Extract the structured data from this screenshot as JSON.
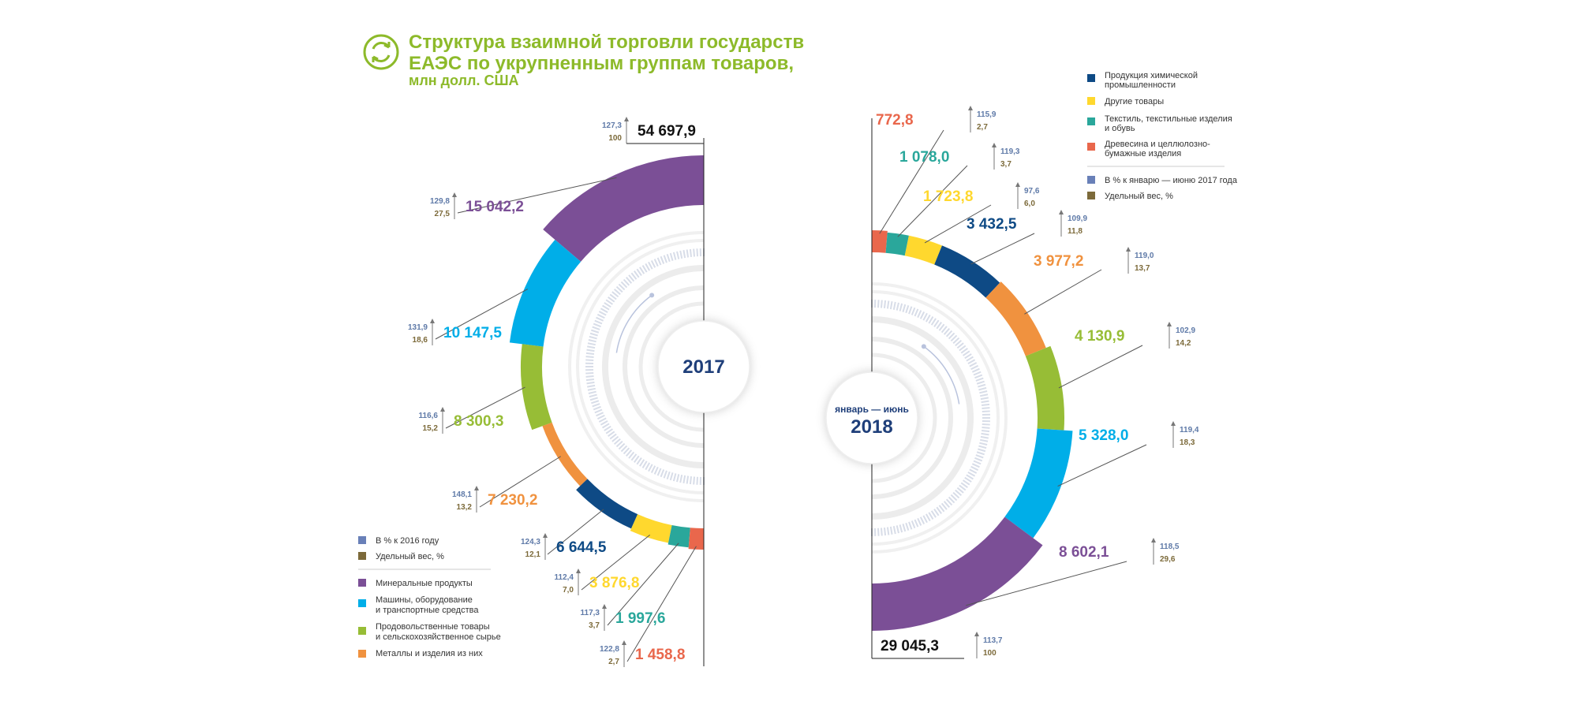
{
  "header": {
    "title_line1": "Структура взаимной торговли государств",
    "title_line2": "ЕАЭС по укрупненным группам товаров,",
    "subtitle": "млн долл. США"
  },
  "colors": {
    "minerals": "#7b4f96",
    "machinery": "#00aee8",
    "food": "#97bd36",
    "metals": "#f0923f",
    "chemical": "#0e4a85",
    "other": "#ffd82e",
    "textile": "#2aa79b",
    "wood": "#e9674c",
    "pct_marker": "#6980b8",
    "share_marker": "#7c6a3a",
    "title": "#8dba2a"
  },
  "legend_left": {
    "pct_label": "В % к 2016 году",
    "share_label": "Удельный вес, %",
    "items": [
      {
        "key": "minerals",
        "label": "Минеральные продукты"
      },
      {
        "key": "machinery",
        "label1": "Машины, оборудование",
        "label2": "и транспортные средства"
      },
      {
        "key": "food",
        "label1": "Продовольственные товары",
        "label2": "и сельскохозяйственное сырье"
      },
      {
        "key": "metals",
        "label": "Металлы и изделия из них"
      }
    ]
  },
  "legend_right": {
    "items": [
      {
        "key": "chemical",
        "label1": "Продукция химической",
        "label2": "промышленности"
      },
      {
        "key": "other",
        "label": "Другие товары"
      },
      {
        "key": "textile",
        "label1": "Текстиль, текстильные изделия",
        "label2": "и обувь"
      },
      {
        "key": "wood",
        "label1": "Древесина и целлюлозно-",
        "label2": "бумажные изделия"
      }
    ],
    "pct_label": "В % к январю — июню 2017 года",
    "share_label": "Удельный вес, %"
  },
  "chart_data": [
    {
      "type": "pie",
      "center_label": "2017",
      "total": {
        "value": "54 697,9",
        "pct": "127,3",
        "share": "100"
      },
      "series": [
        {
          "key": "minerals",
          "value": 15042.2,
          "label": "15 042,2",
          "pct": "129,8",
          "share": "27,5"
        },
        {
          "key": "machinery",
          "value": 10147.5,
          "label": "10 147,5",
          "pct": "131,9",
          "share": "18,6"
        },
        {
          "key": "food",
          "value": 8300.3,
          "label": "8 300,3",
          "pct": "116,6",
          "share": "15,2"
        },
        {
          "key": "metals",
          "value": 7230.2,
          "label": "7 230,2",
          "pct": "148,1",
          "share": "13,2"
        },
        {
          "key": "chemical",
          "value": 6644.5,
          "label": "6 644,5",
          "pct": "124,3",
          "share": "12,1"
        },
        {
          "key": "other",
          "value": 3876.8,
          "label": "3 876,8",
          "pct": "112,4",
          "share": "7,0"
        },
        {
          "key": "textile",
          "value": 1997.6,
          "label": "1 997,6",
          "pct": "117,3",
          "share": "3,7"
        },
        {
          "key": "wood",
          "value": 1458.8,
          "label": "1 458,8",
          "pct": "122,8",
          "share": "2,7"
        }
      ]
    },
    {
      "type": "pie",
      "center_label_top": "январь — июнь",
      "center_label": "2018",
      "total": {
        "value": "29 045,3",
        "pct": "113,7",
        "share": "100"
      },
      "series": [
        {
          "key": "wood",
          "value": 772.8,
          "label": "772,8",
          "pct": "115,9",
          "share": "2,7"
        },
        {
          "key": "textile",
          "value": 1078.0,
          "label": "1 078,0",
          "pct": "119,3",
          "share": "3,7"
        },
        {
          "key": "other",
          "value": 1723.8,
          "label": "1 723,8",
          "pct": "97,6",
          "share": "6,0"
        },
        {
          "key": "chemical",
          "value": 3432.5,
          "label": "3 432,5",
          "pct": "109,9",
          "share": "11,8"
        },
        {
          "key": "metals",
          "value": 3977.2,
          "label": "3 977,2",
          "pct": "119,0",
          "share": "13,7"
        },
        {
          "key": "food",
          "value": 4130.9,
          "label": "4 130,9",
          "pct": "102,9",
          "share": "14,2"
        },
        {
          "key": "machinery",
          "value": 5328.0,
          "label": "5 328,0",
          "pct": "119,4",
          "share": "18,3"
        },
        {
          "key": "minerals",
          "value": 8602.1,
          "label": "8 602,1",
          "pct": "118,5",
          "share": "29,6"
        }
      ]
    }
  ]
}
